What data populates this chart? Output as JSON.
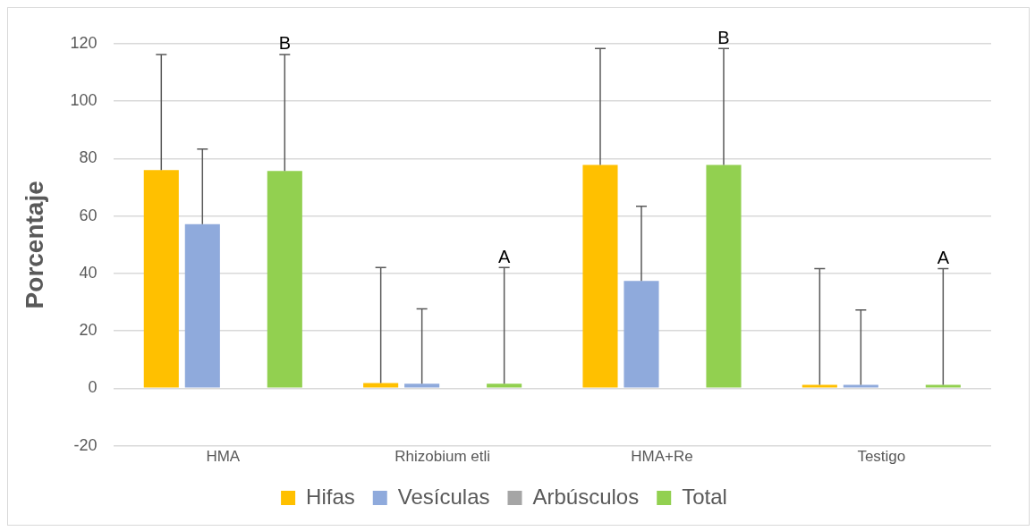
{
  "chart_data": {
    "type": "bar",
    "ylabel": "Porcentaje",
    "categories": [
      "HMA",
      "Rhizobium etli",
      "HMA+Re",
      "Testigo"
    ],
    "series": [
      {
        "name": "Hifas",
        "color": "#ffc000",
        "values": [
          76.0,
          1.8,
          77.8,
          1.2
        ],
        "errors": [
          [
            76.0,
            116.3
          ],
          [
            1.8,
            42.1
          ],
          [
            77.8,
            118.4
          ],
          [
            1.2,
            41.7
          ]
        ]
      },
      {
        "name": "Vesículas",
        "color": "#8faadc",
        "values": [
          57.2,
          1.6,
          37.4,
          1.2
        ],
        "errors": [
          [
            57.2,
            83.3
          ],
          [
            1.6,
            27.7
          ],
          [
            37.4,
            63.4
          ],
          [
            1.2,
            27.3
          ]
        ]
      },
      {
        "name": "Arbúsculos",
        "color": "#a5a5a5",
        "values": [
          0,
          0,
          0,
          0
        ]
      },
      {
        "name": "Total",
        "color": "#92d050",
        "values": [
          75.7,
          1.6,
          77.8,
          1.2
        ],
        "errors": [
          [
            75.7,
            116.3
          ],
          [
            1.6,
            42.1
          ],
          [
            77.8,
            118.4
          ],
          [
            1.2,
            41.7
          ]
        ]
      }
    ],
    "ylim": [
      -20,
      120
    ],
    "yticks": [
      -20,
      0,
      20,
      40,
      60,
      80,
      100,
      120
    ],
    "grid": "y",
    "legend": "bottom",
    "annotations": [
      "B",
      "A",
      "B",
      "A"
    ]
  }
}
